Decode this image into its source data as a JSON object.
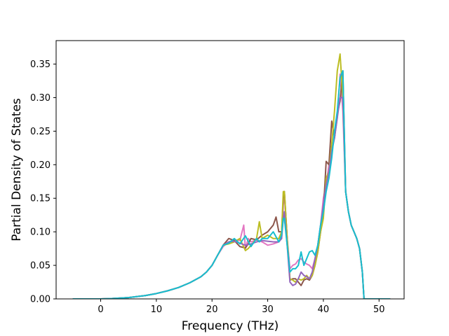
{
  "chart_data": {
    "type": "line",
    "title": "",
    "xlabel": "Frequency (THz)",
    "ylabel": "Partial Density of States",
    "xlim": [
      -8.0,
      54.5
    ],
    "ylim": [
      0.0,
      0.385
    ],
    "xticks": [
      0,
      10,
      20,
      30,
      40,
      50
    ],
    "xtick_labels": [
      "0",
      "10",
      "20",
      "30",
      "40",
      "50"
    ],
    "yticks": [
      0.0,
      0.05,
      0.1,
      0.15,
      0.2,
      0.25,
      0.3,
      0.35
    ],
    "ytick_labels": [
      "0.00",
      "0.05",
      "0.10",
      "0.15",
      "0.20",
      "0.25",
      "0.30",
      "0.35"
    ],
    "grid": false,
    "legend": "none",
    "series": [
      {
        "color": "#e377c2",
        "x": [
          -5,
          0,
          2,
          5,
          8,
          10,
          12,
          14,
          16,
          18,
          19,
          20,
          21,
          22,
          23,
          24,
          25,
          25.7,
          26,
          26.5,
          27,
          28,
          29,
          30,
          31,
          32,
          32.5,
          32.8,
          33,
          33.5,
          34,
          34.5,
          35,
          35.5,
          36,
          36.5,
          37,
          37.5,
          38,
          38.5,
          39,
          39.5,
          40,
          40.5,
          41,
          41.5,
          42,
          42.5,
          43,
          43.5,
          44,
          44.5,
          45,
          45.5,
          46,
          46.5,
          47,
          47.3,
          48,
          50,
          52
        ],
        "y": [
          0,
          0,
          0.0005,
          0.002,
          0.005,
          0.008,
          0.012,
          0.017,
          0.024,
          0.033,
          0.04,
          0.05,
          0.065,
          0.078,
          0.085,
          0.088,
          0.087,
          0.11,
          0.075,
          0.09,
          0.085,
          0.088,
          0.085,
          0.08,
          0.082,
          0.085,
          0.09,
          0.14,
          0.155,
          0.09,
          0.045,
          0.05,
          0.052,
          0.058,
          0.06,
          0.055,
          0.052,
          0.05,
          0.045,
          0.06,
          0.08,
          0.11,
          0.15,
          0.17,
          0.2,
          0.22,
          0.24,
          0.27,
          0.335,
          0.28,
          0.16,
          0.13,
          0.11,
          0.1,
          0.09,
          0.075,
          0.04,
          0.0,
          0,
          0,
          0
        ]
      },
      {
        "color": "#8c564b",
        "x": [
          -5,
          0,
          2,
          5,
          8,
          10,
          12,
          14,
          16,
          18,
          19,
          20,
          21,
          22,
          23,
          24,
          25,
          26,
          26.5,
          27,
          28,
          29,
          30,
          31,
          31.5,
          32,
          32.5,
          32.8,
          33,
          33.5,
          34,
          34.5,
          35,
          35.5,
          36,
          36.5,
          37,
          37.5,
          38,
          38.5,
          39,
          39.5,
          40,
          40.5,
          41,
          41.5,
          42,
          42.5,
          43,
          43.5,
          44,
          44.5,
          45,
          45.5,
          46,
          46.5,
          47,
          47.3,
          48,
          50,
          52
        ],
        "y": [
          0,
          0,
          0.0005,
          0.002,
          0.005,
          0.008,
          0.012,
          0.017,
          0.024,
          0.033,
          0.04,
          0.05,
          0.065,
          0.08,
          0.09,
          0.087,
          0.078,
          0.076,
          0.082,
          0.09,
          0.088,
          0.095,
          0.1,
          0.11,
          0.122,
          0.1,
          0.1,
          0.15,
          0.16,
          0.09,
          0.028,
          0.03,
          0.03,
          0.025,
          0.02,
          0.028,
          0.03,
          0.028,
          0.035,
          0.05,
          0.07,
          0.1,
          0.13,
          0.205,
          0.2,
          0.265,
          0.24,
          0.275,
          0.295,
          0.34,
          0.16,
          0.13,
          0.11,
          0.1,
          0.09,
          0.075,
          0.04,
          0.0,
          0,
          0,
          0
        ]
      },
      {
        "color": "#bcbd22",
        "x": [
          -5,
          0,
          2,
          5,
          8,
          10,
          12,
          14,
          16,
          18,
          19,
          20,
          21,
          22,
          23,
          24,
          25,
          26,
          26.5,
          27,
          28,
          28.5,
          29,
          30,
          31,
          32,
          32.5,
          32.8,
          33,
          33.5,
          34,
          34.5,
          35,
          35.5,
          36,
          36.5,
          37,
          37.5,
          38,
          38.5,
          39,
          39.5,
          40,
          40.5,
          41,
          41.5,
          42,
          42.5,
          43,
          43.5,
          44,
          44.5,
          45,
          45.5,
          46,
          46.5,
          47,
          47.3,
          48,
          50,
          52
        ],
        "y": [
          0,
          0,
          0.0005,
          0.002,
          0.005,
          0.008,
          0.012,
          0.017,
          0.024,
          0.033,
          0.04,
          0.05,
          0.065,
          0.08,
          0.082,
          0.085,
          0.09,
          0.072,
          0.075,
          0.08,
          0.09,
          0.115,
          0.09,
          0.095,
          0.09,
          0.09,
          0.1,
          0.16,
          0.16,
          0.09,
          0.03,
          0.028,
          0.025,
          0.03,
          0.028,
          0.03,
          0.035,
          0.03,
          0.035,
          0.05,
          0.07,
          0.1,
          0.12,
          0.18,
          0.19,
          0.23,
          0.28,
          0.34,
          0.365,
          0.3,
          0.16,
          0.13,
          0.11,
          0.1,
          0.09,
          0.075,
          0.04,
          0.0,
          0,
          0,
          0
        ]
      },
      {
        "color": "#9467bd",
        "x": [
          -5,
          0,
          2,
          5,
          8,
          10,
          12,
          14,
          16,
          18,
          19,
          20,
          21,
          22,
          23,
          24,
          25,
          26,
          27,
          28,
          29,
          30,
          31,
          32,
          32.5,
          32.8,
          33,
          33.5,
          34,
          34.5,
          35,
          35.5,
          36,
          36.5,
          37,
          37.5,
          38,
          38.5,
          39,
          39.5,
          40,
          40.5,
          41,
          41.5,
          42,
          42.5,
          43,
          43.5,
          44,
          44.5,
          45,
          45.5,
          46,
          46.5,
          47,
          47.3,
          48,
          50,
          52
        ],
        "y": [
          0,
          0,
          0.0005,
          0.002,
          0.005,
          0.008,
          0.012,
          0.017,
          0.024,
          0.033,
          0.04,
          0.05,
          0.065,
          0.08,
          0.085,
          0.086,
          0.083,
          0.08,
          0.082,
          0.085,
          0.087,
          0.086,
          0.085,
          0.085,
          0.09,
          0.12,
          0.13,
          0.08,
          0.025,
          0.02,
          0.022,
          0.03,
          0.04,
          0.035,
          0.033,
          0.03,
          0.04,
          0.06,
          0.08,
          0.11,
          0.14,
          0.17,
          0.19,
          0.22,
          0.24,
          0.27,
          0.3,
          0.3,
          0.16,
          0.13,
          0.11,
          0.1,
          0.09,
          0.075,
          0.04,
          0.0,
          0,
          0,
          0
        ]
      },
      {
        "color": "#17becf",
        "x": [
          -5,
          0,
          2,
          5,
          8,
          10,
          12,
          14,
          16,
          18,
          19,
          20,
          21,
          22,
          23,
          24,
          25,
          26,
          27,
          28,
          28.5,
          29,
          30,
          31,
          32,
          32.5,
          32.8,
          33,
          33.5,
          34,
          34.5,
          35,
          35.5,
          36,
          36.5,
          37,
          37.5,
          38,
          38.5,
          39,
          39.5,
          40,
          40.5,
          41,
          41.5,
          42,
          42.5,
          43,
          43.5,
          44,
          44.5,
          45,
          45.5,
          46,
          46.5,
          47,
          47.3,
          48,
          50,
          52
        ],
        "y": [
          0,
          0,
          0.0005,
          0.002,
          0.005,
          0.008,
          0.012,
          0.017,
          0.024,
          0.033,
          0.04,
          0.05,
          0.065,
          0.08,
          0.083,
          0.09,
          0.082,
          0.094,
          0.078,
          0.09,
          0.085,
          0.09,
          0.09,
          0.1,
          0.085,
          0.095,
          0.12,
          0.12,
          0.08,
          0.04,
          0.045,
          0.045,
          0.05,
          0.07,
          0.05,
          0.06,
          0.07,
          0.072,
          0.065,
          0.08,
          0.11,
          0.13,
          0.16,
          0.18,
          0.21,
          0.25,
          0.28,
          0.33,
          0.34,
          0.16,
          0.13,
          0.11,
          0.1,
          0.09,
          0.075,
          0.04,
          0.0,
          0,
          0,
          0
        ]
      }
    ]
  }
}
